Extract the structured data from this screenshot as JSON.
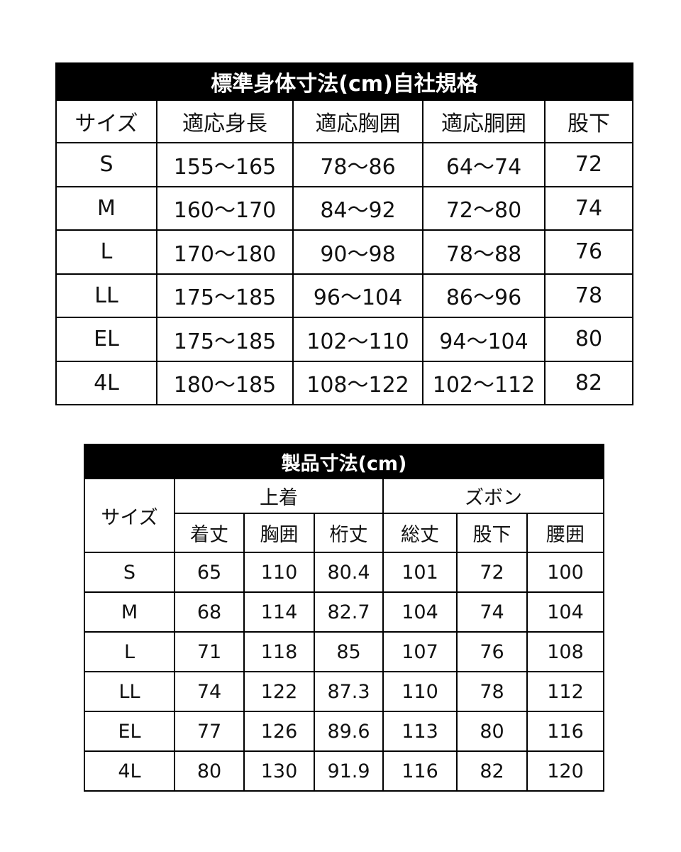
{
  "standard": {
    "title": "標準身体寸法(cm)自社規格",
    "headers": [
      "サイズ",
      "適応身長",
      "適応胸囲",
      "適応胴囲",
      "股下"
    ],
    "rows": [
      [
        "S",
        "155～165",
        "78～86",
        "64～74",
        "72"
      ],
      [
        "M",
        "160～170",
        "84～92",
        "72～80",
        "74"
      ],
      [
        "L",
        "170～180",
        "90～98",
        "78～88",
        "76"
      ],
      [
        "LL",
        "175～185",
        "96～104",
        "86～96",
        "78"
      ],
      [
        "EL",
        "175～185",
        "102～110",
        "94～104",
        "80"
      ],
      [
        "4L",
        "180～185",
        "108～122",
        "102～112",
        "82"
      ]
    ]
  },
  "product": {
    "title": "製品寸法(cm)",
    "size_header": "サイズ",
    "groups": [
      "上着",
      "ズボン"
    ],
    "headers": [
      "着丈",
      "胸囲",
      "桁丈",
      "総丈",
      "股下",
      "腰囲"
    ],
    "rows": [
      [
        "S",
        "65",
        "110",
        "80.4",
        "101",
        "72",
        "100"
      ],
      [
        "M",
        "68",
        "114",
        "82.7",
        "104",
        "74",
        "104"
      ],
      [
        "L",
        "71",
        "118",
        "85",
        "107",
        "76",
        "108"
      ],
      [
        "LL",
        "74",
        "122",
        "87.3",
        "110",
        "78",
        "112"
      ],
      [
        "EL",
        "77",
        "126",
        "89.6",
        "113",
        "80",
        "116"
      ],
      [
        "4L",
        "80",
        "130",
        "91.9",
        "116",
        "82",
        "120"
      ]
    ]
  }
}
